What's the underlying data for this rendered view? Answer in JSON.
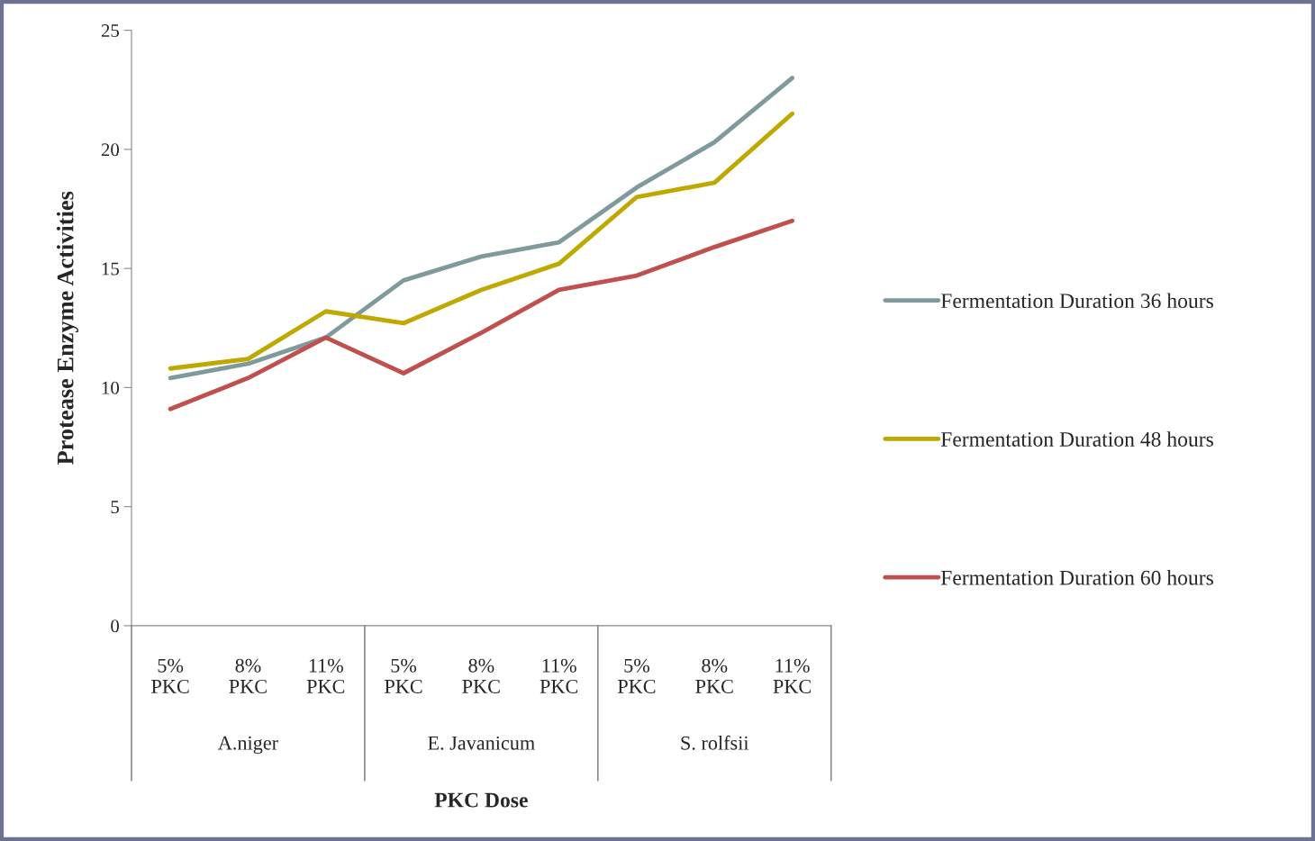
{
  "chart_data": {
    "type": "line",
    "xlabel": "PKC Dose",
    "ylabel": "Protease Enzyme Activities",
    "categories": [
      "5% PKC",
      "8% PKC",
      "11% PKC",
      "5% PKC",
      "8% PKC",
      "11% PKC",
      "5% PKC",
      "8% PKC",
      "11% PKC"
    ],
    "annotations": [
      "A.niger",
      "E. Javanicum",
      "S. rolfsii"
    ],
    "series": [
      {
        "name": "Fermentation Duration 36 hours",
        "color": "#7f9a9c",
        "values": [
          10.4,
          11.0,
          12.1,
          14.5,
          15.5,
          16.1,
          18.4,
          20.3,
          23.0
        ]
      },
      {
        "name": "Fermentation Duration 48 hours",
        "color": "#bfa800",
        "values": [
          10.8,
          11.2,
          13.2,
          12.7,
          14.1,
          15.2,
          18.0,
          18.6,
          21.5
        ]
      },
      {
        "name": "Fermentation Duration 60 hours",
        "color": "#c0504d",
        "values": [
          9.1,
          10.4,
          12.1,
          10.6,
          12.3,
          14.1,
          14.7,
          15.9,
          17.0
        ]
      }
    ],
    "ylim": [
      0,
      25
    ],
    "yticks": [
      0,
      5,
      10,
      15,
      20,
      25
    ],
    "grid": false,
    "legend": "right",
    "marker": "none",
    "line_style": "solid"
  }
}
